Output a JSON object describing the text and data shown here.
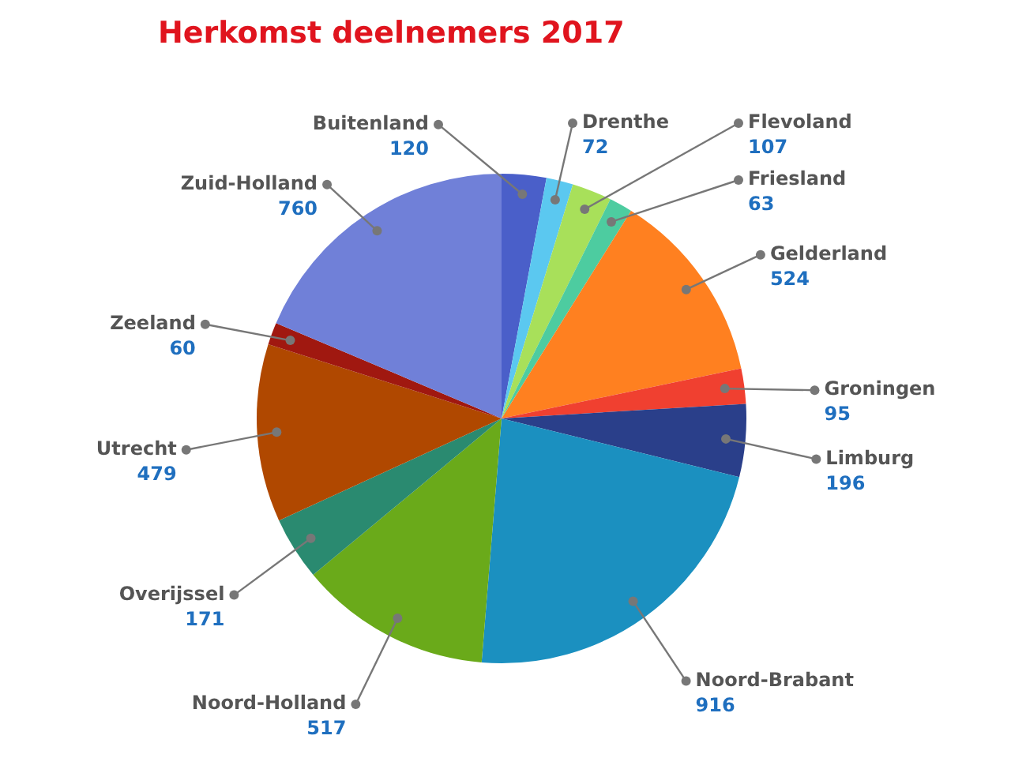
{
  "chart_data": {
    "type": "pie",
    "title": "Herkomst deelnemers 2017",
    "categories": [
      "Buitenland",
      "Drenthe",
      "Flevoland",
      "Friesland",
      "Gelderland",
      "Groningen",
      "Limburg",
      "Noord-Brabant",
      "Noord-Holland",
      "Overijssel",
      "Utrecht",
      "Zeeland",
      "Zuid-Holland"
    ],
    "values": [
      120,
      72,
      107,
      63,
      524,
      95,
      196,
      916,
      517,
      171,
      479,
      60,
      760
    ],
    "colors": [
      "#4a5fc9",
      "#5bc8f0",
      "#a8e05a",
      "#4dcca0",
      "#ff8020",
      "#f04030",
      "#2a3f8a",
      "#1b90c0",
      "#6aaa1a",
      "#2a8a70",
      "#b04800",
      "#a01810",
      "#7080d8"
    ],
    "data_labels": true,
    "legend": false
  }
}
